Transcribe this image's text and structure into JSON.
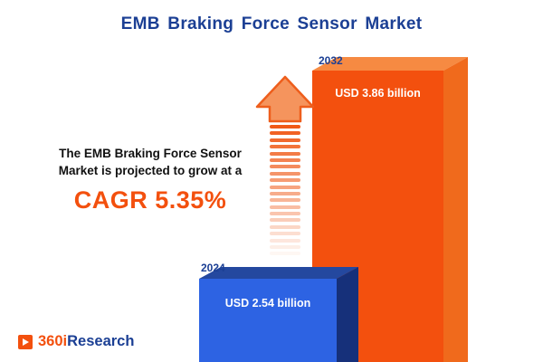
{
  "title": "EMB Braking Force Sensor Market",
  "annotation": {
    "line1": "The EMB Braking Force Sensor",
    "line2": "Market is projected to grow at a",
    "cagr": "CAGR 5.35%"
  },
  "logo": {
    "prefix": "360i",
    "suffix": "Research",
    "mark_icon": "logo-square-icon"
  },
  "chart_data": {
    "type": "bar",
    "title": "EMB Braking Force Sensor Market",
    "categories": [
      "2024",
      "2032"
    ],
    "values": [
      2.54,
      3.86
    ],
    "unit": "USD billion",
    "bar_labels": [
      "USD 2.54 billion",
      "USD 3.86 billion"
    ],
    "annotations": [
      "The EMB Braking Force Sensor Market is projected to grow at a",
      "CAGR 5.35%"
    ],
    "growth_arrow": "dashed upward arrow between annotation and bars",
    "ylim": [
      0,
      4.5
    ],
    "legend": false,
    "grid": false,
    "style": "3d-bars"
  },
  "colors": {
    "title_blue": "#1b3f94",
    "annotation_black": "#111111",
    "accent_orange": "#f3500e",
    "bar2024_front": "#2d63e3",
    "bar2024_side": "#16307a",
    "bar2024_top": "#24489f",
    "bar2032_front": "#f3500e",
    "bar2032_side": "#f06a1c",
    "bar2032_top": "#f68a42",
    "value_text": "#ffffff"
  }
}
